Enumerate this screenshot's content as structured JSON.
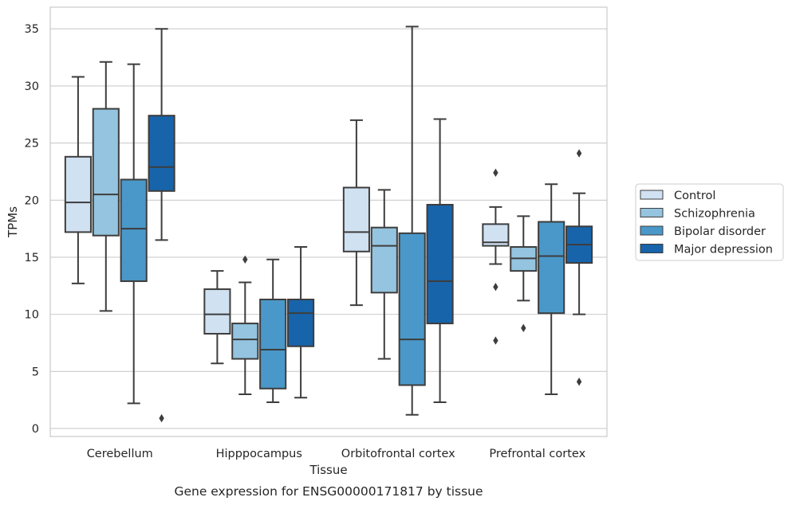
{
  "caption": "Gene expression for ENSG00000171817 by tissue",
  "chart_data": {
    "type": "box",
    "xlabel": "Tissue",
    "ylabel": "TPMs",
    "ylim": [
      -0.7,
      36.9
    ],
    "yticks": [
      0,
      5,
      10,
      15,
      20,
      25,
      30,
      35
    ],
    "grid": true,
    "legend_position": "right",
    "categories": [
      "Cerebellum",
      "Hipppocampus",
      "Orbitofrontal cortex",
      "Prefrontal cortex"
    ],
    "series": [
      {
        "name": "Control",
        "color": "#d0e1f2",
        "boxes": [
          {
            "whisker_low": 12.7,
            "q1": 17.2,
            "median": 19.8,
            "q3": 23.8,
            "whisker_high": 30.8,
            "outliers": []
          },
          {
            "whisker_low": 5.7,
            "q1": 8.3,
            "median": 10.0,
            "q3": 12.2,
            "whisker_high": 13.8,
            "outliers": []
          },
          {
            "whisker_low": 10.8,
            "q1": 15.5,
            "median": 17.2,
            "q3": 21.1,
            "whisker_high": 27.0,
            "outliers": []
          },
          {
            "whisker_low": 14.4,
            "q1": 16.0,
            "median": 16.3,
            "q3": 17.9,
            "whisker_high": 19.4,
            "outliers": [
              22.4,
              12.4,
              7.7
            ]
          }
        ]
      },
      {
        "name": "Schizophrenia",
        "color": "#94c4df",
        "boxes": [
          {
            "whisker_low": 10.3,
            "q1": 16.9,
            "median": 20.5,
            "q3": 28.0,
            "whisker_high": 32.1,
            "outliers": []
          },
          {
            "whisker_low": 3.0,
            "q1": 6.1,
            "median": 7.8,
            "q3": 9.2,
            "whisker_high": 12.8,
            "outliers": [
              14.8
            ]
          },
          {
            "whisker_low": 6.1,
            "q1": 11.9,
            "median": 16.0,
            "q3": 17.6,
            "whisker_high": 20.9,
            "outliers": []
          },
          {
            "whisker_low": 11.2,
            "q1": 13.8,
            "median": 14.9,
            "q3": 15.9,
            "whisker_high": 18.6,
            "outliers": [
              8.8
            ]
          }
        ]
      },
      {
        "name": "Bipolar disorder",
        "color": "#4a98c9",
        "boxes": [
          {
            "whisker_low": 2.2,
            "q1": 12.9,
            "median": 17.5,
            "q3": 21.8,
            "whisker_high": 31.9,
            "outliers": []
          },
          {
            "whisker_low": 2.3,
            "q1": 3.5,
            "median": 6.9,
            "q3": 11.3,
            "whisker_high": 14.8,
            "outliers": []
          },
          {
            "whisker_low": 1.2,
            "q1": 3.8,
            "median": 7.8,
            "q3": 17.1,
            "whisker_high": 35.2,
            "outliers": []
          },
          {
            "whisker_low": 3.0,
            "q1": 10.1,
            "median": 15.1,
            "q3": 18.1,
            "whisker_high": 21.4,
            "outliers": []
          }
        ]
      },
      {
        "name": "Major depression",
        "color": "#1764ab",
        "boxes": [
          {
            "whisker_low": 16.5,
            "q1": 20.8,
            "median": 22.9,
            "q3": 27.4,
            "whisker_high": 35.0,
            "outliers": [
              0.9
            ]
          },
          {
            "whisker_low": 2.7,
            "q1": 7.2,
            "median": 10.1,
            "q3": 11.3,
            "whisker_high": 15.9,
            "outliers": []
          },
          {
            "whisker_low": 2.3,
            "q1": 9.2,
            "median": 12.9,
            "q3": 19.6,
            "whisker_high": 27.1,
            "outliers": []
          },
          {
            "whisker_low": 10.0,
            "q1": 14.5,
            "median": 16.1,
            "q3": 17.7,
            "whisker_high": 20.6,
            "outliers": [
              24.1,
              4.1
            ]
          }
        ]
      }
    ]
  }
}
